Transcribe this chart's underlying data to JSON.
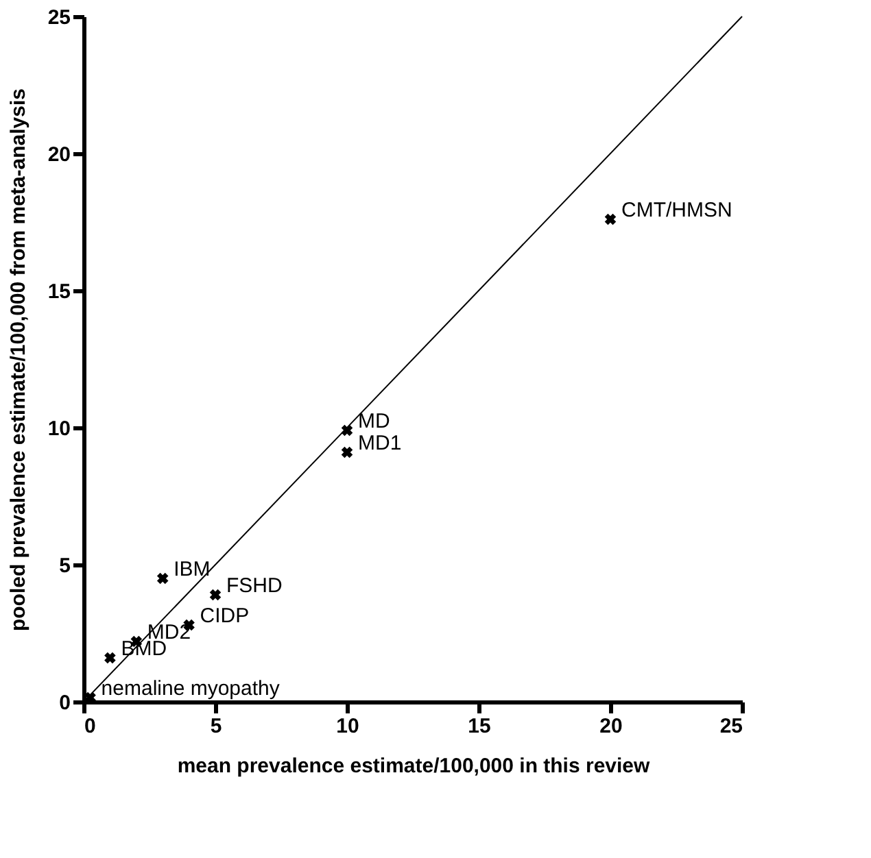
{
  "chart_data": {
    "type": "scatter",
    "xlabel": "mean prevalence estimate/100,000 in this review",
    "ylabel": "pooled prevalence estimate/100,000 from meta-analysis",
    "xlim": [
      0,
      25
    ],
    "ylim": [
      0,
      25
    ],
    "xticks": [
      0,
      5,
      10,
      15,
      20,
      25
    ],
    "yticks": [
      0,
      5,
      10,
      15,
      20,
      25
    ],
    "grid": false,
    "series": [
      {
        "marker": "cross",
        "color": "#000000",
        "x": [
          20,
          10,
          10,
          3,
          5,
          4,
          2,
          1,
          0.25
        ],
        "values": [
          17.6,
          9.9,
          9.1,
          4.5,
          3.9,
          2.8,
          2.2,
          1.6,
          0.15
        ]
      },
      {
        "type": "line",
        "color": "#000000",
        "line_style": "solid",
        "x": [
          0,
          25
        ],
        "values": [
          0,
          25
        ]
      }
    ],
    "annotations": [
      {
        "text": "CMT/HMSN",
        "x": 20,
        "y": 17.6
      },
      {
        "text": "MD",
        "x": 10,
        "y": 9.9
      },
      {
        "text": "MD1",
        "x": 10,
        "y": 9.1
      },
      {
        "text": "IBM",
        "x": 3,
        "y": 4.5
      },
      {
        "text": "FSHD",
        "x": 5,
        "y": 3.9
      },
      {
        "text": "CIDP",
        "x": 4,
        "y": 2.8
      },
      {
        "text": "MD2",
        "x": 2,
        "y": 2.2
      },
      {
        "text": "BMD",
        "x": 1,
        "y": 1.6
      },
      {
        "text": "nemaline myopathy",
        "x": 0.25,
        "y": 0.15
      }
    ]
  }
}
